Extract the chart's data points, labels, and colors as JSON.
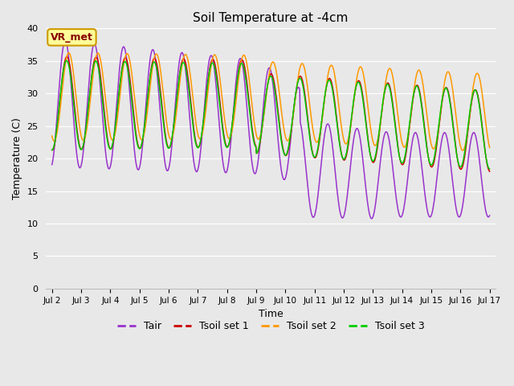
{
  "title": "Soil Temperature at -4cm",
  "xlabel": "Time",
  "ylabel": "Temperature (C)",
  "ylim": [
    0,
    40
  ],
  "yticks": [
    0,
    5,
    10,
    15,
    20,
    25,
    30,
    35,
    40
  ],
  "bg_color": "#e8e8e8",
  "colors": {
    "Tair": "#9933cc",
    "Tsoil1": "#cc0000",
    "Tsoil2": "#ff9900",
    "Tsoil3": "#00cc00"
  },
  "legend_labels": [
    "Tair",
    "Tsoil set 1",
    "Tsoil set 2",
    "Tsoil set 3"
  ],
  "annotation_text": "VR_met",
  "annotation_box_facecolor": "#ffff99",
  "annotation_box_edgecolor": "#cc9900",
  "annotation_text_color": "#880000"
}
